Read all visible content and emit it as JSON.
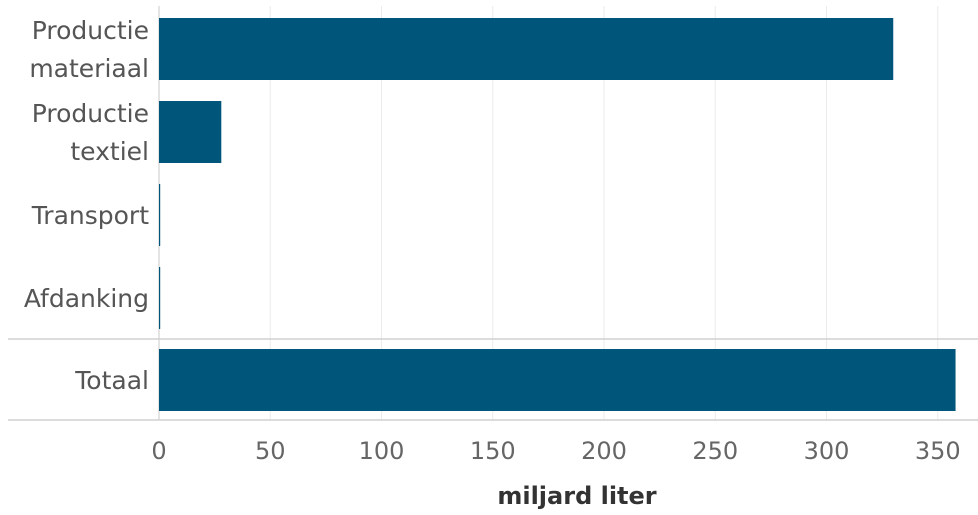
{
  "chart_data": {
    "type": "bar",
    "orientation": "horizontal",
    "title": "",
    "xlabel": "miljard liter",
    "ylabel": "",
    "categories": [
      [
        "Productie",
        "materiaal"
      ],
      [
        "Productie",
        "textiel"
      ],
      [
        "Transport"
      ],
      [
        "Afdanking"
      ],
      [
        "Totaal"
      ]
    ],
    "values": [
      330,
      28,
      0.4,
      0.4,
      358
    ],
    "xlim": [
      0,
      360
    ],
    "xticks": [
      0,
      50,
      100,
      150,
      200,
      250,
      300,
      350
    ],
    "grid": "vertical",
    "total_separated": true,
    "bar_color": "#00567A",
    "gridline_color": "#EBEBEB",
    "separator_color": "#D0D0D0"
  }
}
